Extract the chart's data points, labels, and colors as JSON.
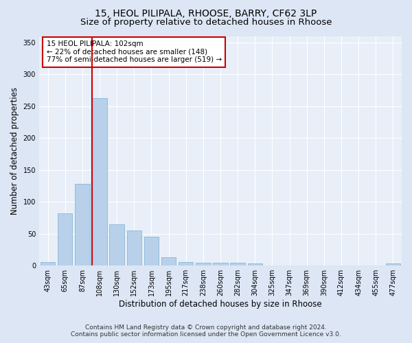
{
  "title1": "15, HEOL PILIPALA, RHOOSE, BARRY, CF62 3LP",
  "title2": "Size of property relative to detached houses in Rhoose",
  "xlabel": "Distribution of detached houses by size in Rhoose",
  "ylabel": "Number of detached properties",
  "footer1": "Contains HM Land Registry data © Crown copyright and database right 2024.",
  "footer2": "Contains public sector information licensed under the Open Government Licence v3.0.",
  "annotation_line1": "15 HEOL PILIPALA: 102sqm",
  "annotation_line2": "← 22% of detached houses are smaller (148)",
  "annotation_line3": "77% of semi-detached houses are larger (519) →",
  "categories": [
    "43sqm",
    "65sqm",
    "87sqm",
    "108sqm",
    "130sqm",
    "152sqm",
    "173sqm",
    "195sqm",
    "217sqm",
    "238sqm",
    "260sqm",
    "282sqm",
    "304sqm",
    "325sqm",
    "347sqm",
    "369sqm",
    "390sqm",
    "412sqm",
    "434sqm",
    "455sqm",
    "477sqm"
  ],
  "values": [
    6,
    82,
    128,
    263,
    65,
    55,
    45,
    13,
    6,
    5,
    5,
    5,
    3,
    0,
    0,
    0,
    0,
    0,
    0,
    0,
    3
  ],
  "bar_color": "#b8d0ea",
  "bar_edge_color": "#7aafd4",
  "red_line_color": "#cc0000",
  "ylim": [
    0,
    360
  ],
  "yticks": [
    0,
    50,
    100,
    150,
    200,
    250,
    300,
    350
  ],
  "bg_color": "#dce6f5",
  "plot_bg_color": "#e8eff8",
  "grid_color": "#ffffff",
  "annotation_box_color": "#cc0000",
  "title_fontsize": 10,
  "subtitle_fontsize": 9.5,
  "axis_label_fontsize": 8.5,
  "tick_fontsize": 7,
  "footer_fontsize": 6.5
}
